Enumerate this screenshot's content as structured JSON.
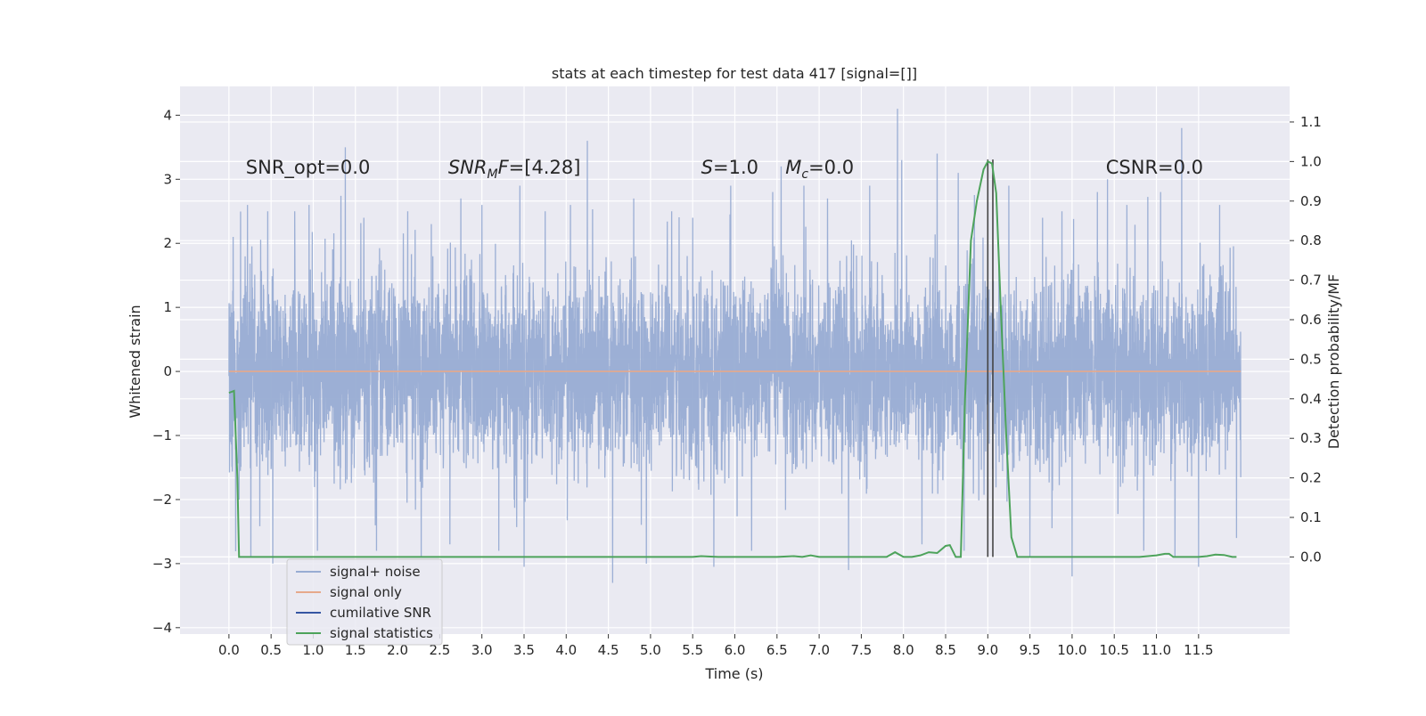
{
  "chart_data": {
    "type": "line",
    "title": "stats at each timestep for test data 417 [signal=[]]",
    "xlabel": "Time (s)",
    "ylabel_left": "Whitened strain",
    "ylabel_right": "Detection probability/MF",
    "xlim": [
      -0.58,
      12.58
    ],
    "ylim_left": [
      -4.1,
      4.45
    ],
    "ylim_right": [
      -0.195,
      1.19
    ],
    "x_ticks": [
      0.0,
      0.5,
      1.0,
      1.5,
      2.0,
      2.5,
      3.0,
      3.5,
      4.0,
      4.5,
      5.0,
      5.5,
      6.0,
      6.5,
      7.0,
      7.5,
      8.0,
      8.5,
      9.0,
      9.5,
      10.0,
      10.5,
      11.0,
      11.5
    ],
    "x_tick_labels": [
      "0.0",
      "0.5",
      "1.0",
      "1.5",
      "2.0",
      "2.5",
      "3.0",
      "3.5",
      "4.0",
      "4.5",
      "5.0",
      "5.5",
      "6.0",
      "6.5",
      "7.0",
      "7.5",
      "8.0",
      "8.5",
      "9.0",
      "9.5",
      "10.0",
      "10.5",
      "11.0",
      "11.5"
    ],
    "y_left_ticks": [
      -4,
      -3,
      -2,
      -1,
      0,
      1,
      2,
      3,
      4
    ],
    "y_left_tick_labels": [
      "−4",
      "−3",
      "−2",
      "−1",
      "0",
      "1",
      "2",
      "3",
      "4"
    ],
    "y_right_ticks": [
      0.0,
      0.1,
      0.2,
      0.3,
      0.4,
      0.5,
      0.6,
      0.7,
      0.8,
      0.9,
      1.0,
      1.1
    ],
    "y_right_tick_labels": [
      "0.0",
      "0.1",
      "0.2",
      "0.3",
      "0.4",
      "0.5",
      "0.6",
      "0.7",
      "0.8",
      "0.9",
      "1.0",
      "1.1"
    ],
    "grid": true,
    "legend_position": "lower-left",
    "annotations": [
      {
        "text": "SNR_opt=0.0",
        "x": 0.2
      },
      {
        "text": "SNRMF=[4.28]",
        "x": 2.6
      },
      {
        "text": "S=1.0",
        "x": 5.6
      },
      {
        "text": "Mc=0.0",
        "x": 6.6
      },
      {
        "text": "CSNR=0.0",
        "x": 10.4
      }
    ],
    "annotation_y": 3.2,
    "vertical_lines": [
      9.0,
      9.06
    ],
    "series": [
      {
        "name": "signal+ noise",
        "axis": "left",
        "color": "#98acd3",
        "duration": 12.0,
        "core_sigma": 1.0,
        "spikes": [
          {
            "x": 0.05,
            "y": 2.1
          },
          {
            "x": 0.12,
            "y": -2.0
          },
          {
            "x": 0.22,
            "y": 2.6
          },
          {
            "x": 0.26,
            "y": -2.9
          },
          {
            "x": 0.46,
            "y": 2.5
          },
          {
            "x": 0.52,
            "y": -3.0
          },
          {
            "x": 0.78,
            "y": 2.5
          },
          {
            "x": 0.95,
            "y": 2.6
          },
          {
            "x": 1.05,
            "y": -2.8
          },
          {
            "x": 1.38,
            "y": 3.5
          },
          {
            "x": 1.6,
            "y": 2.4
          },
          {
            "x": 1.75,
            "y": -2.8
          },
          {
            "x": 2.12,
            "y": 2.5
          },
          {
            "x": 2.28,
            "y": -2.9
          },
          {
            "x": 2.4,
            "y": 2.3
          },
          {
            "x": 2.62,
            "y": -2.7
          },
          {
            "x": 2.75,
            "y": 2.7
          },
          {
            "x": 3.0,
            "y": 2.6
          },
          {
            "x": 3.2,
            "y": -2.8
          },
          {
            "x": 3.45,
            "y": 2.9
          },
          {
            "x": 3.5,
            "y": -3.05
          },
          {
            "x": 3.75,
            "y": 2.5
          },
          {
            "x": 4.05,
            "y": 2.6
          },
          {
            "x": 4.25,
            "y": 3.6
          },
          {
            "x": 4.55,
            "y": -3.3
          },
          {
            "x": 4.8,
            "y": 2.7
          },
          {
            "x": 4.95,
            "y": -3.0
          },
          {
            "x": 5.25,
            "y": 2.5
          },
          {
            "x": 5.5,
            "y": 2.4
          },
          {
            "x": 5.75,
            "y": -3.05
          },
          {
            "x": 5.95,
            "y": 2.9
          },
          {
            "x": 6.2,
            "y": -2.8
          },
          {
            "x": 6.45,
            "y": 2.8
          },
          {
            "x": 6.55,
            "y": 3.2
          },
          {
            "x": 6.82,
            "y": 2.9
          },
          {
            "x": 7.1,
            "y": 2.7
          },
          {
            "x": 7.35,
            "y": -3.1
          },
          {
            "x": 7.6,
            "y": 2.9
          },
          {
            "x": 7.93,
            "y": 4.1
          },
          {
            "x": 7.98,
            "y": 3.3
          },
          {
            "x": 8.22,
            "y": -2.7
          },
          {
            "x": 8.4,
            "y": 3.4
          },
          {
            "x": 8.65,
            "y": 3.1
          },
          {
            "x": 8.72,
            "y": -2.8
          },
          {
            "x": 9.25,
            "y": 2.9
          },
          {
            "x": 9.5,
            "y": -2.9
          },
          {
            "x": 9.65,
            "y": 2.4
          },
          {
            "x": 9.88,
            "y": 2.5
          },
          {
            "x": 10.0,
            "y": -3.2
          },
          {
            "x": 10.3,
            "y": 2.8
          },
          {
            "x": 10.42,
            "y": 3.0
          },
          {
            "x": 10.65,
            "y": 2.6
          },
          {
            "x": 10.85,
            "y": -2.8
          },
          {
            "x": 11.05,
            "y": 2.8
          },
          {
            "x": 11.22,
            "y": -2.9
          },
          {
            "x": 11.3,
            "y": 3.8
          },
          {
            "x": 11.5,
            "y": -3.05
          },
          {
            "x": 11.75,
            "y": 2.6
          },
          {
            "x": 11.95,
            "y": -2.6
          }
        ]
      },
      {
        "name": "signal only",
        "axis": "left",
        "color": "#e6a98b",
        "x": [
          0.0,
          12.0
        ],
        "y": [
          0.0,
          0.0
        ]
      },
      {
        "name": "cumilative SNR",
        "axis": "left",
        "color": "#3656a3",
        "x": [],
        "y": []
      },
      {
        "name": "signal statistics",
        "axis": "right",
        "color": "#4da35b",
        "x": [
          0.0,
          0.06,
          0.1,
          0.12,
          0.15,
          0.2,
          1.0,
          2.0,
          3.0,
          4.0,
          5.0,
          5.5,
          5.6,
          5.8,
          6.0,
          6.2,
          6.5,
          6.7,
          6.8,
          6.9,
          7.0,
          7.2,
          7.5,
          7.8,
          7.9,
          8.0,
          8.1,
          8.2,
          8.3,
          8.4,
          8.5,
          8.55,
          8.62,
          8.68,
          8.73,
          8.8,
          8.87,
          8.95,
          9.0,
          9.05,
          9.1,
          9.15,
          9.22,
          9.28,
          9.35,
          9.42,
          9.5,
          10.0,
          10.5,
          10.8,
          11.0,
          11.1,
          11.15,
          11.2,
          11.3,
          11.5,
          11.6,
          11.7,
          11.8,
          11.9,
          11.95
        ],
        "y": [
          0.415,
          0.42,
          0.2,
          0.0,
          0.0,
          0.0,
          0.0,
          0.0,
          0.0,
          0.0,
          0.0,
          0.0,
          0.002,
          0.0,
          0.0,
          0.0,
          0.0,
          0.002,
          0.0,
          0.004,
          0.0,
          0.0,
          0.0,
          0.0,
          0.012,
          0.0,
          0.0,
          0.004,
          0.012,
          0.01,
          0.028,
          0.03,
          0.0,
          0.0,
          0.4,
          0.8,
          0.9,
          0.98,
          1.0,
          0.995,
          0.92,
          0.65,
          0.3,
          0.05,
          0.0,
          0.0,
          0.0,
          0.0,
          0.0,
          0.0,
          0.004,
          0.008,
          0.008,
          0.0,
          0.0,
          0.0,
          0.002,
          0.006,
          0.005,
          0.0,
          0.0
        ]
      }
    ]
  }
}
